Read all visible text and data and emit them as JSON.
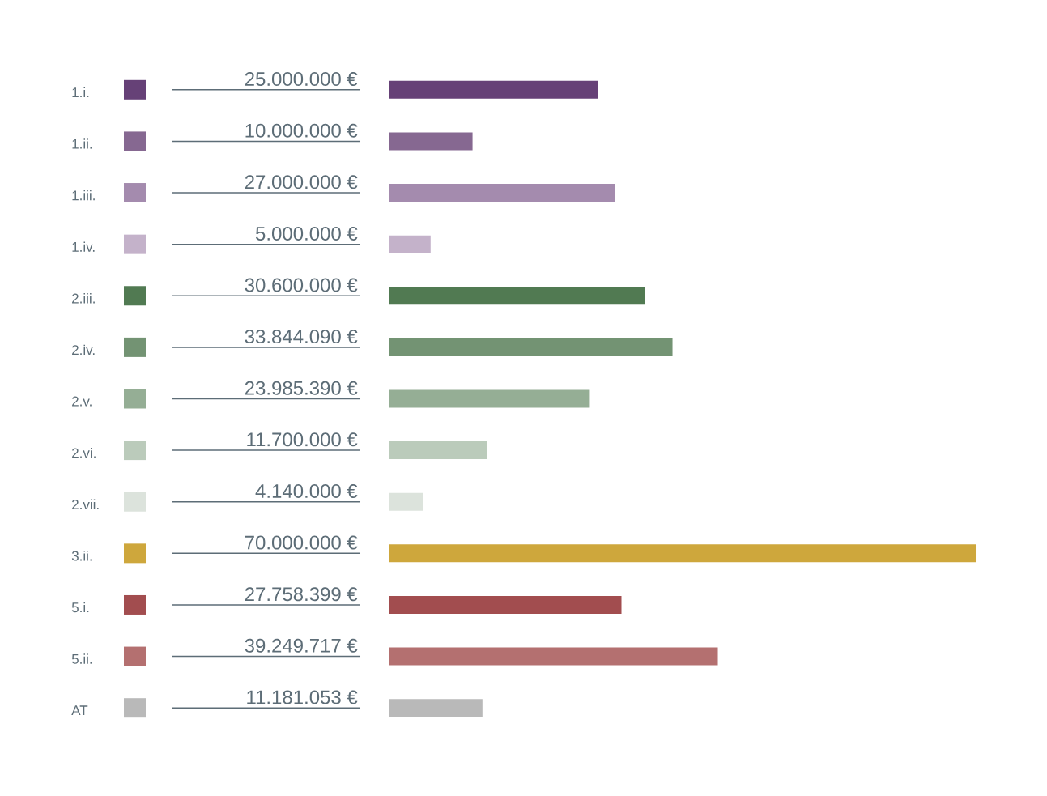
{
  "chart_data": {
    "type": "bar",
    "orientation": "horizontal",
    "categories": [
      "1.i.",
      "1.ii.",
      "1.iii.",
      "1.iv.",
      "2.iii.",
      "2.iv.",
      "2.v.",
      "2.vi.",
      "2.vii.",
      "3.ii.",
      "5.i.",
      "5.ii.",
      "AT"
    ],
    "values": [
      25000000,
      10000000,
      27000000,
      5000000,
      30600000,
      33844090,
      23985390,
      11700000,
      4140000,
      70000000,
      27758399,
      39249717,
      11181053
    ],
    "value_labels": [
      "25.000.000 €",
      "10.000.000 €",
      "27.000.000 €",
      "5.000.000 €",
      "30.600.000 €",
      "33.844.090 €",
      "23.985.390 €",
      "11.700.000 €",
      "4.140.000 €",
      "70.000.000 €",
      "27.758.399 €",
      "39.249.717 €",
      "11.181.053 €"
    ],
    "colors": [
      "#664177",
      "#866891",
      "#a48bae",
      "#c4b2ca",
      "#517a52",
      "#739373",
      "#95ae95",
      "#bbcbbb",
      "#dce3dc",
      "#cea73c",
      "#a24d4f",
      "#b47070",
      "#b9b9b9"
    ]
  }
}
